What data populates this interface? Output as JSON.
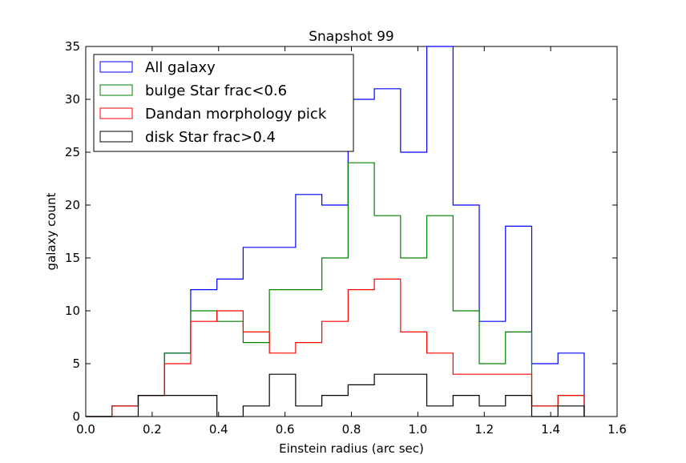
{
  "chart_data": {
    "type": "histogram-step",
    "title": "Snapshot 99",
    "xlabel": "Einstein radius (arc sec)",
    "ylabel": "galaxy count",
    "xlim": [
      0.0,
      1.6
    ],
    "ylim": [
      0,
      35
    ],
    "x_ticks": [
      "0.0",
      "0.2",
      "0.4",
      "0.6",
      "0.8",
      "1.0",
      "1.2",
      "1.4",
      "1.6"
    ],
    "y_ticks": [
      "0",
      "5",
      "10",
      "15",
      "20",
      "25",
      "30",
      "35"
    ],
    "grid": false,
    "legend_position": "upper-left",
    "bin_edges": [
      0.0,
      0.079,
      0.158,
      0.237,
      0.316,
      0.395,
      0.474,
      0.553,
      0.632,
      0.711,
      0.79,
      0.869,
      0.948,
      1.027,
      1.106,
      1.185,
      1.264,
      1.343,
      1.422,
      1.501
    ],
    "series": [
      {
        "name": "All galaxy",
        "color": "#0000ff",
        "values": [
          0,
          1,
          2,
          6,
          12,
          13,
          16,
          16,
          21,
          20,
          30,
          31,
          25,
          35,
          20,
          9,
          18,
          5,
          6
        ]
      },
      {
        "name": "bulge Star frac<0.6",
        "color": "#008000",
        "values": [
          0,
          1,
          2,
          6,
          10,
          9,
          7,
          12,
          12,
          15,
          24,
          19,
          15,
          19,
          10,
          5,
          8,
          1,
          2
        ]
      },
      {
        "name": "Dandan morphology pick",
        "color": "#ff0000",
        "values": [
          0,
          1,
          2,
          5,
          9,
          10,
          8,
          6,
          7,
          9,
          12,
          13,
          8,
          6,
          4,
          4,
          4,
          1,
          2
        ]
      },
      {
        "name": "disk Star frac>0.4",
        "color": "#000000",
        "values": [
          0,
          0,
          2,
          2,
          2,
          0,
          1,
          4,
          1,
          2,
          3,
          4,
          4,
          1,
          2,
          1,
          2,
          0,
          1
        ]
      }
    ]
  }
}
